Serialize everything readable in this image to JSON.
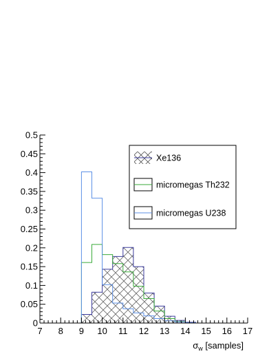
{
  "chart_data": {
    "type": "histogram",
    "xlabel": {
      "symbol": "σ",
      "subscript": "w",
      "rest": " [samples]"
    },
    "ylabel": "",
    "xlim": [
      7,
      17
    ],
    "ylim": [
      0,
      0.5
    ],
    "x_ticks": [
      "7",
      "8",
      "9",
      "10",
      "11",
      "12",
      "13",
      "14",
      "15",
      "16",
      "17"
    ],
    "y_ticks": [
      "0",
      "0.05",
      "0.1",
      "0.15",
      "0.2",
      "0.25",
      "0.3",
      "0.35",
      "0.4",
      "0.45",
      "0.5"
    ],
    "bin_width": 0.5,
    "bins_start": 7,
    "series": [
      {
        "name": "Xe136",
        "color": "#3b3b9c",
        "fill": "crosshatch",
        "values": [
          0,
          0,
          0,
          0,
          0.023,
          0.082,
          0.143,
          0.177,
          0.201,
          0.15,
          0.08,
          0.045,
          0.018,
          0.007,
          0.002,
          0,
          0,
          0,
          0,
          0
        ]
      },
      {
        "name": "micromegas Th232",
        "color": "#3aaa3a",
        "fill": "none",
        "values": [
          0,
          0,
          0,
          0,
          0.161,
          0.209,
          0.182,
          0.158,
          0.136,
          0.098,
          0.065,
          0.032,
          0.012,
          0.004,
          0.001,
          0,
          0,
          0,
          0,
          0
        ]
      },
      {
        "name": "micromegas U238",
        "color": "#5b8fe6",
        "fill": "none",
        "values": [
          0,
          0,
          0,
          0,
          0.402,
          0.332,
          0.102,
          0.053,
          0.038,
          0.027,
          0.019,
          0.012,
          0.006,
          0.003,
          0.001,
          0,
          0,
          0,
          0,
          0
        ]
      }
    ],
    "legend_position": "top-right"
  }
}
